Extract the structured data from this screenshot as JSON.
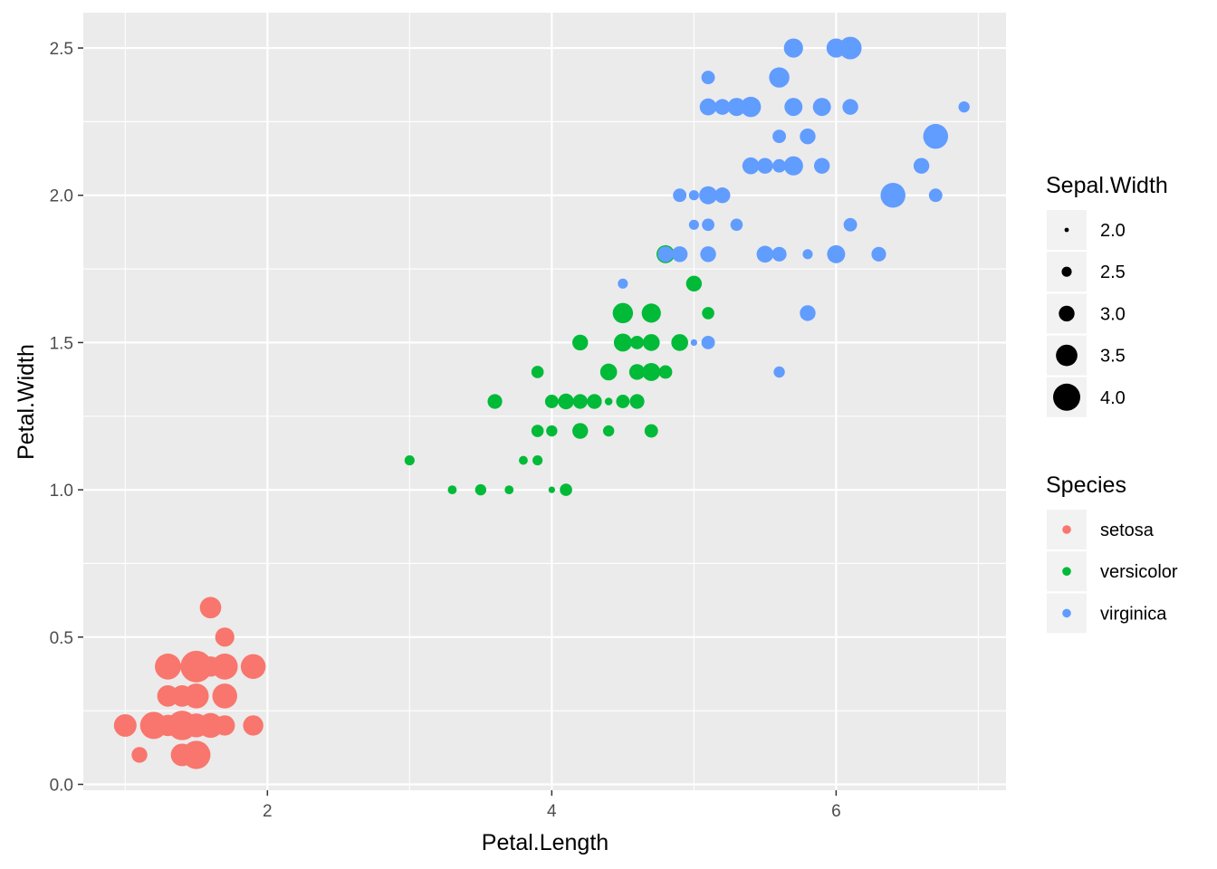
{
  "chart_data": {
    "type": "scatter",
    "xlabel": "Petal.Length",
    "ylabel": "Petal.Width",
    "xlim": [
      0.705,
      7.195
    ],
    "ylim": [
      -0.02,
      2.62
    ],
    "x_ticks": [
      2,
      4,
      6
    ],
    "x_tick_labels": [
      "2",
      "4",
      "6"
    ],
    "y_ticks": [
      0.0,
      0.5,
      1.0,
      1.5,
      2.0,
      2.5
    ],
    "y_tick_labels": [
      "0.0",
      "0.5",
      "1.0",
      "1.5",
      "2.0",
      "2.5"
    ],
    "grid": true,
    "background": "#ebebeb",
    "size_legend": {
      "title": "Sepal.Width",
      "values": [
        2.0,
        2.5,
        3.0,
        3.5,
        4.0
      ],
      "labels": [
        "2.0",
        "2.5",
        "3.0",
        "3.5",
        "4.0"
      ],
      "placement": "right"
    },
    "color_legend": {
      "title": "Species",
      "labels": [
        "setosa",
        "versicolor",
        "virginica"
      ],
      "colors": [
        "#f8766d",
        "#00ba38",
        "#619cff"
      ],
      "placement": "right"
    },
    "series": [
      {
        "name": "setosa",
        "color": "#f8766d",
        "points": [
          [
            1.4,
            0.2,
            3.5
          ],
          [
            1.4,
            0.2,
            3.0
          ],
          [
            1.3,
            0.2,
            3.2
          ],
          [
            1.5,
            0.2,
            3.1
          ],
          [
            1.4,
            0.2,
            3.6
          ],
          [
            1.7,
            0.4,
            3.9
          ],
          [
            1.4,
            0.3,
            3.4
          ],
          [
            1.5,
            0.2,
            3.4
          ],
          [
            1.4,
            0.2,
            2.9
          ],
          [
            1.5,
            0.1,
            3.1
          ],
          [
            1.5,
            0.2,
            3.7
          ],
          [
            1.6,
            0.2,
            3.4
          ],
          [
            1.4,
            0.1,
            3.0
          ],
          [
            1.1,
            0.1,
            3.0
          ],
          [
            1.2,
            0.2,
            4.0
          ],
          [
            1.5,
            0.4,
            4.4
          ],
          [
            1.3,
            0.4,
            3.9
          ],
          [
            1.4,
            0.3,
            3.5
          ],
          [
            1.7,
            0.3,
            3.8
          ],
          [
            1.5,
            0.3,
            3.8
          ],
          [
            1.7,
            0.2,
            3.4
          ],
          [
            1.5,
            0.4,
            3.7
          ],
          [
            1.0,
            0.2,
            3.6
          ],
          [
            1.7,
            0.5,
            3.3
          ],
          [
            1.9,
            0.2,
            3.4
          ],
          [
            1.6,
            0.2,
            3.0
          ],
          [
            1.6,
            0.4,
            3.4
          ],
          [
            1.5,
            0.2,
            3.5
          ],
          [
            1.4,
            0.2,
            3.4
          ],
          [
            1.6,
            0.2,
            3.2
          ],
          [
            1.6,
            0.2,
            3.1
          ],
          [
            1.5,
            0.4,
            3.4
          ],
          [
            1.5,
            0.1,
            4.1
          ],
          [
            1.4,
            0.2,
            4.2
          ],
          [
            1.5,
            0.2,
            3.1
          ],
          [
            1.2,
            0.2,
            3.2
          ],
          [
            1.3,
            0.2,
            3.5
          ],
          [
            1.4,
            0.1,
            3.6
          ],
          [
            1.3,
            0.2,
            3.0
          ],
          [
            1.5,
            0.2,
            3.4
          ],
          [
            1.3,
            0.3,
            3.5
          ],
          [
            1.3,
            0.3,
            2.3
          ],
          [
            1.3,
            0.2,
            3.2
          ],
          [
            1.6,
            0.6,
            3.5
          ],
          [
            1.9,
            0.4,
            3.8
          ],
          [
            1.4,
            0.3,
            3.0
          ],
          [
            1.6,
            0.2,
            3.8
          ],
          [
            1.4,
            0.2,
            3.2
          ],
          [
            1.5,
            0.2,
            3.7
          ],
          [
            1.4,
            0.2,
            3.3
          ]
        ]
      },
      {
        "name": "versicolor",
        "color": "#00ba38",
        "points": [
          [
            4.7,
            1.4,
            3.2
          ],
          [
            4.5,
            1.5,
            3.2
          ],
          [
            4.9,
            1.5,
            3.1
          ],
          [
            4.0,
            1.3,
            2.3
          ],
          [
            4.6,
            1.5,
            2.8
          ],
          [
            4.5,
            1.3,
            2.8
          ],
          [
            4.7,
            1.6,
            3.3
          ],
          [
            3.3,
            1.0,
            2.4
          ],
          [
            4.6,
            1.3,
            2.9
          ],
          [
            3.9,
            1.4,
            2.7
          ],
          [
            3.5,
            1.0,
            2.0
          ],
          [
            4.2,
            1.5,
            3.0
          ],
          [
            4.0,
            1.0,
            2.2
          ],
          [
            4.7,
            1.4,
            2.9
          ],
          [
            3.6,
            1.3,
            2.9
          ],
          [
            4.4,
            1.4,
            3.1
          ],
          [
            4.5,
            1.5,
            3.0
          ],
          [
            4.1,
            1.0,
            2.7
          ],
          [
            4.5,
            1.5,
            2.2
          ],
          [
            3.9,
            1.1,
            2.5
          ],
          [
            4.8,
            1.8,
            3.2
          ],
          [
            4.0,
            1.3,
            2.8
          ],
          [
            4.9,
            1.5,
            2.5
          ],
          [
            4.7,
            1.2,
            2.8
          ],
          [
            4.3,
            1.3,
            2.9
          ],
          [
            4.4,
            1.4,
            3.0
          ],
          [
            4.8,
            1.4,
            2.8
          ],
          [
            5.0,
            1.7,
            3.0
          ],
          [
            4.5,
            1.5,
            2.9
          ],
          [
            3.5,
            1.0,
            2.6
          ],
          [
            3.8,
            1.1,
            2.4
          ],
          [
            3.7,
            1.0,
            2.4
          ],
          [
            3.9,
            1.2,
            2.7
          ],
          [
            5.1,
            1.6,
            2.7
          ],
          [
            4.5,
            1.5,
            3.0
          ],
          [
            4.5,
            1.6,
            3.4
          ],
          [
            4.7,
            1.5,
            3.1
          ],
          [
            4.4,
            1.3,
            2.3
          ],
          [
            4.1,
            1.3,
            3.0
          ],
          [
            4.0,
            1.3,
            2.5
          ],
          [
            4.4,
            1.2,
            2.6
          ],
          [
            4.6,
            1.4,
            3.0
          ],
          [
            4.0,
            1.2,
            2.6
          ],
          [
            3.3,
            1.0,
            2.3
          ],
          [
            4.2,
            1.3,
            2.7
          ],
          [
            4.2,
            1.2,
            3.0
          ],
          [
            4.2,
            1.3,
            2.9
          ],
          [
            4.3,
            1.3,
            2.9
          ],
          [
            3.0,
            1.1,
            2.5
          ],
          [
            4.1,
            1.3,
            2.8
          ]
        ]
      },
      {
        "name": "virginica",
        "color": "#619cff",
        "points": [
          [
            6.0,
            2.5,
            3.3
          ],
          [
            5.1,
            1.9,
            2.7
          ],
          [
            5.9,
            2.1,
            3.0
          ],
          [
            5.6,
            1.8,
            2.9
          ],
          [
            5.8,
            2.2,
            3.0
          ],
          [
            6.6,
            2.1,
            3.0
          ],
          [
            4.5,
            1.7,
            2.5
          ],
          [
            6.3,
            1.8,
            2.9
          ],
          [
            5.8,
            1.8,
            2.5
          ],
          [
            6.1,
            2.5,
            3.6
          ],
          [
            5.1,
            2.0,
            3.2
          ],
          [
            5.3,
            1.9,
            2.7
          ],
          [
            5.5,
            2.1,
            3.0
          ],
          [
            5.0,
            2.0,
            2.5
          ],
          [
            5.1,
            2.4,
            2.8
          ],
          [
            5.3,
            2.3,
            3.2
          ],
          [
            5.5,
            1.8,
            3.0
          ],
          [
            6.7,
            2.2,
            3.8
          ],
          [
            6.9,
            2.3,
            2.6
          ],
          [
            5.0,
            1.5,
            2.2
          ],
          [
            5.7,
            2.3,
            3.2
          ],
          [
            4.9,
            2.0,
            2.8
          ],
          [
            6.7,
            2.0,
            2.8
          ],
          [
            4.9,
            1.8,
            2.7
          ],
          [
            5.7,
            2.1,
            3.3
          ],
          [
            6.0,
            1.8,
            3.2
          ],
          [
            4.8,
            1.8,
            2.8
          ],
          [
            4.9,
            1.8,
            3.0
          ],
          [
            5.6,
            2.1,
            2.8
          ],
          [
            5.8,
            1.6,
            3.0
          ],
          [
            6.1,
            1.9,
            2.8
          ],
          [
            6.4,
            2.0,
            3.8
          ],
          [
            5.6,
            2.2,
            2.8
          ],
          [
            5.1,
            1.5,
            2.8
          ],
          [
            5.6,
            1.4,
            2.6
          ],
          [
            6.1,
            2.3,
            3.0
          ],
          [
            5.6,
            2.4,
            3.4
          ],
          [
            5.5,
            1.8,
            3.1
          ],
          [
            4.8,
            1.8,
            3.0
          ],
          [
            5.4,
            2.1,
            3.1
          ],
          [
            5.6,
            2.4,
            3.1
          ],
          [
            5.1,
            2.3,
            3.1
          ],
          [
            5.1,
            1.9,
            2.7
          ],
          [
            5.9,
            2.3,
            3.2
          ],
          [
            5.7,
            2.5,
            3.3
          ],
          [
            5.2,
            2.3,
            3.0
          ],
          [
            5.0,
            1.9,
            2.5
          ],
          [
            5.2,
            2.0,
            3.0
          ],
          [
            5.4,
            2.3,
            3.4
          ],
          [
            5.1,
            1.8,
            3.0
          ]
        ]
      }
    ]
  }
}
